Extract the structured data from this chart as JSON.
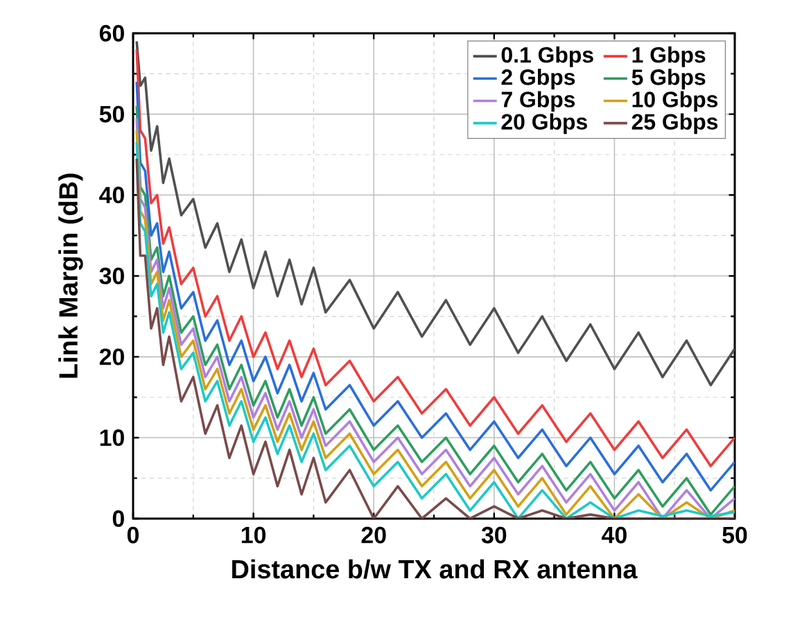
{
  "chart_data": {
    "type": "line",
    "xlabel": "Distance b/w TX and RX antenna",
    "ylabel": "Link Margin (dB)",
    "x": [
      0.3,
      0.6,
      1,
      1.5,
      2,
      2.5,
      3,
      4,
      5,
      6,
      7,
      8,
      9,
      10,
      11,
      12,
      13,
      14,
      15,
      16,
      18,
      20,
      22,
      24,
      26,
      28,
      30,
      32,
      34,
      36,
      38,
      40,
      42,
      44,
      46,
      48,
      50
    ],
    "series": [
      {
        "name": "0.1 Gbps",
        "color": "#505050",
        "values": [
          59,
          53.5,
          54.5,
          45.5,
          48.5,
          41.5,
          44.5,
          37.5,
          39.5,
          33.5,
          36.5,
          30.5,
          34.5,
          28.5,
          33,
          27.5,
          32,
          26.5,
          31,
          25.5,
          29.5,
          23.5,
          28,
          22.5,
          27,
          21.5,
          26,
          20.5,
          25,
          19.5,
          24,
          18.5,
          23,
          17.5,
          22,
          16.5,
          21
        ]
      },
      {
        "name": "1 Gbps",
        "color": "#f03c3c",
        "values": [
          58,
          48,
          47,
          39,
          40,
          34,
          36,
          29,
          31,
          25,
          27.5,
          22,
          25,
          20,
          23,
          18.5,
          22,
          17.5,
          21,
          16.5,
          19.5,
          14.5,
          17.5,
          13,
          16,
          11.5,
          15,
          10.5,
          14,
          9.5,
          13,
          8.5,
          12,
          7.5,
          11,
          6.5,
          10
        ]
      },
      {
        "name": "2 Gbps",
        "color": "#2a6fdb",
        "values": [
          54,
          44,
          43,
          35,
          36.5,
          30.5,
          33,
          26,
          28,
          22,
          24.5,
          19,
          22,
          17,
          20,
          15.5,
          19,
          14.5,
          18,
          13.5,
          16.5,
          11.5,
          14.5,
          10,
          13,
          8.5,
          12,
          7.5,
          11,
          6.5,
          10,
          5.5,
          9,
          4.5,
          8,
          3.5,
          7
        ]
      },
      {
        "name": "5 Gbps",
        "color": "#2e9e5e",
        "values": [
          51,
          41,
          40,
          32,
          33.5,
          27.5,
          30,
          23,
          25,
          19,
          21.5,
          16,
          19,
          14,
          17,
          12.5,
          16,
          11.5,
          15,
          10.5,
          13.5,
          8.5,
          11.5,
          7,
          10,
          5.5,
          9,
          4.5,
          8,
          3.5,
          7,
          2.5,
          6,
          1.5,
          5,
          0.5,
          4
        ]
      },
      {
        "name": "7 Gbps",
        "color": "#b07fdf",
        "values": [
          49.5,
          39.5,
          38.5,
          30.5,
          32,
          26,
          28.5,
          21.5,
          23.5,
          17.5,
          20,
          14.5,
          17.5,
          12.5,
          15.5,
          11,
          14.5,
          10,
          13.5,
          9,
          12,
          7,
          10,
          5.5,
          8.5,
          4,
          7.5,
          3,
          6.5,
          2,
          5.5,
          1,
          4.5,
          0,
          3.5,
          0,
          2.5
        ]
      },
      {
        "name": "10 Gbps",
        "color": "#d4a017",
        "values": [
          48,
          38,
          37,
          29,
          30.5,
          24.5,
          27,
          20,
          22,
          16,
          18.5,
          13,
          16,
          11,
          14,
          9.5,
          13,
          8.5,
          12,
          7.5,
          10.5,
          5.5,
          8.5,
          4,
          7,
          2.5,
          6,
          1.5,
          5,
          0.5,
          4,
          0,
          3,
          0,
          2,
          0,
          1
        ]
      },
      {
        "name": "20 Gbps",
        "color": "#20c8c8",
        "values": [
          46.5,
          36.5,
          35.5,
          27.5,
          29,
          23,
          25.5,
          18.5,
          20.5,
          14.5,
          17,
          11.5,
          14.5,
          9.5,
          12.5,
          8,
          11.5,
          7,
          10.5,
          6,
          9,
          4,
          7,
          2.5,
          5.5,
          1,
          4.5,
          0,
          3.5,
          0,
          2,
          0,
          1,
          0.3,
          1,
          0.3,
          0.8
        ]
      },
      {
        "name": "25 Gbps",
        "color": "#7a4a4a",
        "values": [
          44.5,
          32.5,
          32.5,
          23.5,
          26,
          19,
          22.5,
          14.5,
          17.5,
          10.5,
          14,
          7.5,
          11.5,
          5.5,
          9.5,
          4,
          8.5,
          3,
          7.5,
          2,
          6,
          0,
          4,
          0,
          2.5,
          0,
          1.5,
          0,
          1,
          0,
          0.5,
          0,
          0,
          0,
          0,
          0,
          0
        ]
      }
    ],
    "xlim": [
      0,
      50
    ],
    "ylim": [
      0,
      60
    ],
    "xticks": [
      0,
      10,
      20,
      30,
      40,
      50
    ],
    "yticks": [
      0,
      10,
      20,
      30,
      40,
      50,
      60
    ],
    "grid": true,
    "legend": "top right",
    "marker": "none",
    "line_style": "solid"
  }
}
